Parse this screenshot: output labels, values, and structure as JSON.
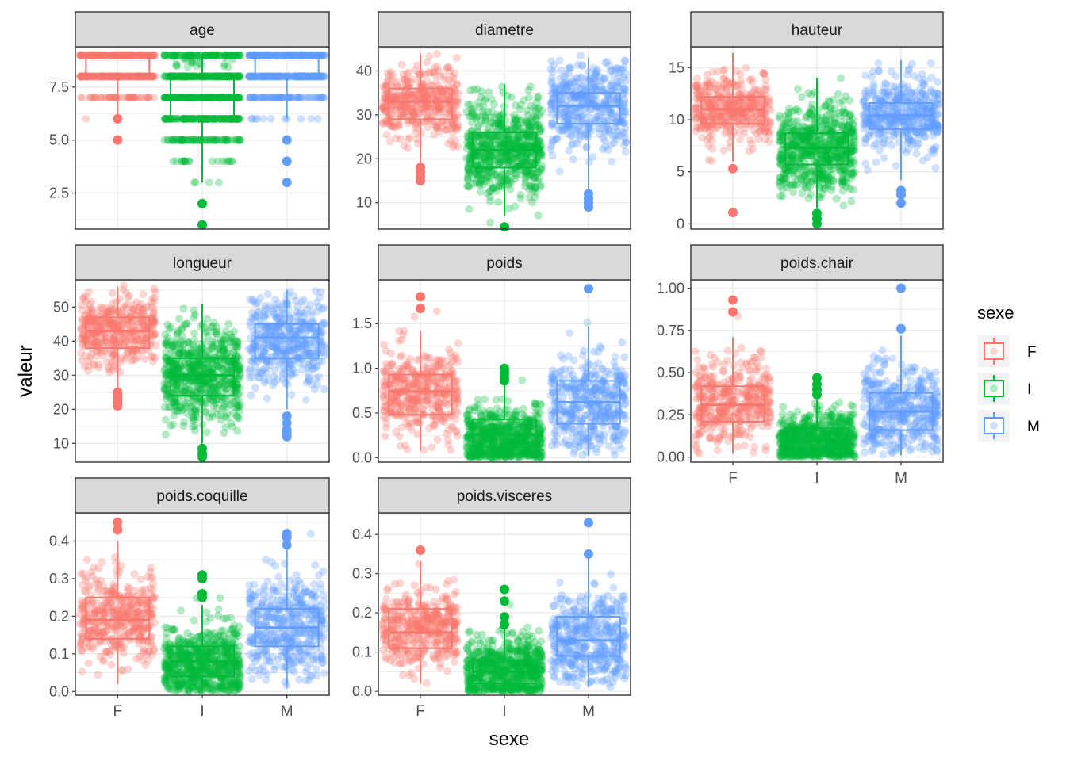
{
  "chart_data": {
    "type": "box",
    "xlabel": "sexe",
    "ylabel": "valeur",
    "categories": [
      "F",
      "I",
      "M"
    ],
    "legend": {
      "title": "sexe",
      "position": "right",
      "entries": [
        {
          "label": "F",
          "color": "#F8766D"
        },
        {
          "label": "I",
          "color": "#00BA38"
        },
        {
          "label": "M",
          "color": "#619CFF"
        }
      ]
    },
    "grid": true,
    "panels": [
      {
        "title": "age",
        "ylim": [
          0.8,
          9.4
        ],
        "yticks": [
          2.5,
          5.0,
          7.5
        ],
        "ytick_labels": [
          "2.5",
          "5.0",
          "7.5"
        ],
        "discrete": true,
        "boxes": [
          {
            "group": "F",
            "min": 6,
            "q1": 8,
            "median": 8,
            "q3": 9,
            "max": 9,
            "outliers": [
              5,
              6
            ],
            "lo": 5,
            "hi": 9,
            "mid": 8.4,
            "spread": 0.7
          },
          {
            "group": "I",
            "min": 3,
            "q1": 6,
            "median": 7,
            "q3": 8,
            "max": 9,
            "outliers": [
              1,
              2
            ],
            "lo": 1,
            "hi": 9,
            "mid": 7.0,
            "spread": 1.4
          },
          {
            "group": "M",
            "min": 6,
            "q1": 8,
            "median": 8,
            "q3": 9,
            "max": 9,
            "outliers": [
              3,
              4,
              5
            ],
            "lo": 3,
            "hi": 9,
            "mid": 8.3,
            "spread": 0.9
          }
        ]
      },
      {
        "title": "diametre",
        "ylim": [
          4,
          45.5
        ],
        "yticks": [
          10,
          20,
          30,
          40
        ],
        "ytick_labels": [
          "10",
          "20",
          "30",
          "40"
        ],
        "boxes": [
          {
            "group": "F",
            "min": 19,
            "q1": 29,
            "median": 33,
            "q3": 36,
            "max": 44,
            "outliers": [
              15,
              16,
              17,
              18
            ],
            "lo": 15,
            "hi": 44,
            "mid": 33,
            "spread": 4
          },
          {
            "group": "I",
            "min": 7,
            "q1": 18,
            "median": 22,
            "q3": 26,
            "max": 37,
            "outliers": [
              4.5
            ],
            "lo": 4.5,
            "hi": 37,
            "mid": 22,
            "spread": 5.5
          },
          {
            "group": "M",
            "min": 13,
            "q1": 28,
            "median": 32,
            "q3": 35,
            "max": 43,
            "outliers": [
              9,
              10,
              11,
              12
            ],
            "lo": 8.5,
            "hi": 43.5,
            "mid": 32,
            "spread": 5
          }
        ]
      },
      {
        "title": "hauteur",
        "ylim": [
          -0.5,
          17
        ],
        "yticks": [
          0,
          5,
          10,
          15
        ],
        "ytick_labels": [
          "0",
          "5",
          "10",
          "15"
        ],
        "boxes": [
          {
            "group": "F",
            "min": 6,
            "q1": 9.6,
            "median": 11,
            "q3": 12.2,
            "max": 16.4,
            "outliers": [
              1.1,
              5.3
            ],
            "lo": 1.1,
            "hi": 16.4,
            "mid": 11,
            "spread": 1.6
          },
          {
            "group": "I",
            "min": 1.5,
            "q1": 5.7,
            "median": 7.3,
            "q3": 8.7,
            "max": 14,
            "outliers": [
              0,
              0.5,
              1
            ],
            "lo": 0,
            "hi": 14,
            "mid": 7.2,
            "spread": 2
          },
          {
            "group": "M",
            "min": 4.2,
            "q1": 9.1,
            "median": 10.4,
            "q3": 11.6,
            "max": 15.7,
            "outliers": [
              2,
              2.8,
              3.2
            ],
            "lo": 1.9,
            "hi": 15.7,
            "mid": 10.4,
            "spread": 1.8
          }
        ]
      },
      {
        "title": "longueur",
        "ylim": [
          4.5,
          58
        ],
        "yticks": [
          10,
          20,
          30,
          40,
          50
        ],
        "ytick_labels": [
          "10",
          "20",
          "30",
          "40",
          "50"
        ],
        "boxes": [
          {
            "group": "F",
            "min": 26,
            "q1": 38,
            "median": 43,
            "q3": 47,
            "max": 56,
            "outliers": [
              21,
              22,
              23,
              24,
              25
            ],
            "lo": 21,
            "hi": 56.5,
            "mid": 43,
            "spread": 5
          },
          {
            "group": "I",
            "min": 10,
            "q1": 24,
            "median": 30,
            "q3": 35,
            "max": 51,
            "outliers": [
              6,
              7,
              8.5
            ],
            "lo": 6,
            "hi": 51,
            "mid": 30,
            "spread": 7
          },
          {
            "group": "M",
            "min": 20,
            "q1": 35,
            "median": 41,
            "q3": 45,
            "max": 55,
            "outliers": [
              12,
              13,
              14,
              16,
              18
            ],
            "lo": 11.5,
            "hi": 55,
            "mid": 40,
            "spread": 6.5
          }
        ]
      },
      {
        "title": "poids",
        "ylim": [
          -0.05,
          1.99
        ],
        "yticks": [
          0.0,
          0.5,
          1.0,
          1.5
        ],
        "ytick_labels": [
          "0.0",
          "0.5",
          "1.0",
          "1.5"
        ],
        "boxes": [
          {
            "group": "F",
            "min": 0.08,
            "q1": 0.48,
            "median": 0.74,
            "q3": 0.93,
            "max": 1.42,
            "outliers": [
              1.67,
              1.8
            ],
            "lo": 0.08,
            "hi": 1.82,
            "mid": 0.72,
            "spread": 0.24
          },
          {
            "group": "I",
            "min": 0.0,
            "q1": 0.12,
            "median": 0.26,
            "q3": 0.43,
            "max": 0.82,
            "outliers": [
              0.86,
              0.9,
              0.95,
              1.0
            ],
            "lo": 0.0,
            "hi": 1.01,
            "mid": 0.22,
            "spread": 0.18
          },
          {
            "group": "M",
            "min": 0.02,
            "q1": 0.38,
            "median": 0.62,
            "q3": 0.86,
            "max": 1.47,
            "outliers": [
              1.89
            ],
            "lo": 0.02,
            "hi": 1.89,
            "mid": 0.62,
            "spread": 0.27
          }
        ]
      },
      {
        "title": "poids.chair",
        "ylim": [
          -0.03,
          1.05
        ],
        "yticks": [
          0.0,
          0.25,
          0.5,
          0.75,
          1.0
        ],
        "ytick_labels": [
          "0.00",
          "0.25",
          "0.50",
          "0.75",
          "1.00"
        ],
        "boxes": [
          {
            "group": "F",
            "min": 0.02,
            "q1": 0.21,
            "median": 0.31,
            "q3": 0.42,
            "max": 0.71,
            "outliers": [
              0.86,
              0.93
            ],
            "lo": 0.02,
            "hi": 0.93,
            "mid": 0.32,
            "spread": 0.12
          },
          {
            "group": "I",
            "min": 0.0,
            "q1": 0.05,
            "median": 0.1,
            "q3": 0.17,
            "max": 0.34,
            "outliers": [
              0.37,
              0.4,
              0.43,
              0.47
            ],
            "lo": 0.0,
            "hi": 0.47,
            "mid": 0.1,
            "spread": 0.08
          },
          {
            "group": "M",
            "min": 0.01,
            "q1": 0.16,
            "median": 0.27,
            "q3": 0.38,
            "max": 0.72,
            "outliers": [
              0.76,
              1.0
            ],
            "lo": 0.01,
            "hi": 1.01,
            "mid": 0.27,
            "spread": 0.13
          }
        ]
      },
      {
        "title": "poids.coquille",
        "ylim": [
          -0.01,
          0.475
        ],
        "yticks": [
          0.0,
          0.1,
          0.2,
          0.3,
          0.4
        ],
        "ytick_labels": [
          "0.0",
          "0.1",
          "0.2",
          "0.3",
          "0.4"
        ],
        "boxes": [
          {
            "group": "F",
            "min": 0.02,
            "q1": 0.14,
            "median": 0.19,
            "q3": 0.25,
            "max": 0.4,
            "outliers": [
              0.43,
              0.45
            ],
            "lo": 0.02,
            "hi": 0.45,
            "mid": 0.2,
            "spread": 0.06
          },
          {
            "group": "I",
            "min": 0.0,
            "q1": 0.04,
            "median": 0.08,
            "q3": 0.12,
            "max": 0.23,
            "outliers": [
              0.25,
              0.26,
              0.3,
              0.31
            ],
            "lo": 0.0,
            "hi": 0.31,
            "mid": 0.07,
            "spread": 0.05
          },
          {
            "group": "M",
            "min": 0.01,
            "q1": 0.12,
            "median": 0.17,
            "q3": 0.22,
            "max": 0.38,
            "outliers": [
              0.39,
              0.41,
              0.42
            ],
            "lo": 0.01,
            "hi": 0.42,
            "mid": 0.17,
            "spread": 0.07
          }
        ]
      },
      {
        "title": "poids.visceres",
        "ylim": [
          -0.01,
          0.455
        ],
        "yticks": [
          0.0,
          0.1,
          0.2,
          0.3,
          0.4
        ],
        "ytick_labels": [
          "0.0",
          "0.1",
          "0.2",
          "0.3",
          "0.4"
        ],
        "boxes": [
          {
            "group": "F",
            "min": 0.02,
            "q1": 0.11,
            "median": 0.15,
            "q3": 0.21,
            "max": 0.33,
            "outliers": [
              0.36
            ],
            "lo": 0.02,
            "hi": 0.36,
            "mid": 0.16,
            "spread": 0.05
          },
          {
            "group": "I",
            "min": 0.0,
            "q1": 0.02,
            "median": 0.05,
            "q3": 0.08,
            "max": 0.16,
            "outliers": [
              0.17,
              0.19,
              0.23,
              0.26
            ],
            "lo": 0.0,
            "hi": 0.26,
            "mid": 0.05,
            "spread": 0.04
          },
          {
            "group": "M",
            "min": 0.01,
            "q1": 0.09,
            "median": 0.13,
            "q3": 0.19,
            "max": 0.34,
            "outliers": [
              0.35,
              0.43
            ],
            "lo": 0.01,
            "hi": 0.43,
            "mid": 0.13,
            "spread": 0.06
          }
        ]
      }
    ]
  }
}
